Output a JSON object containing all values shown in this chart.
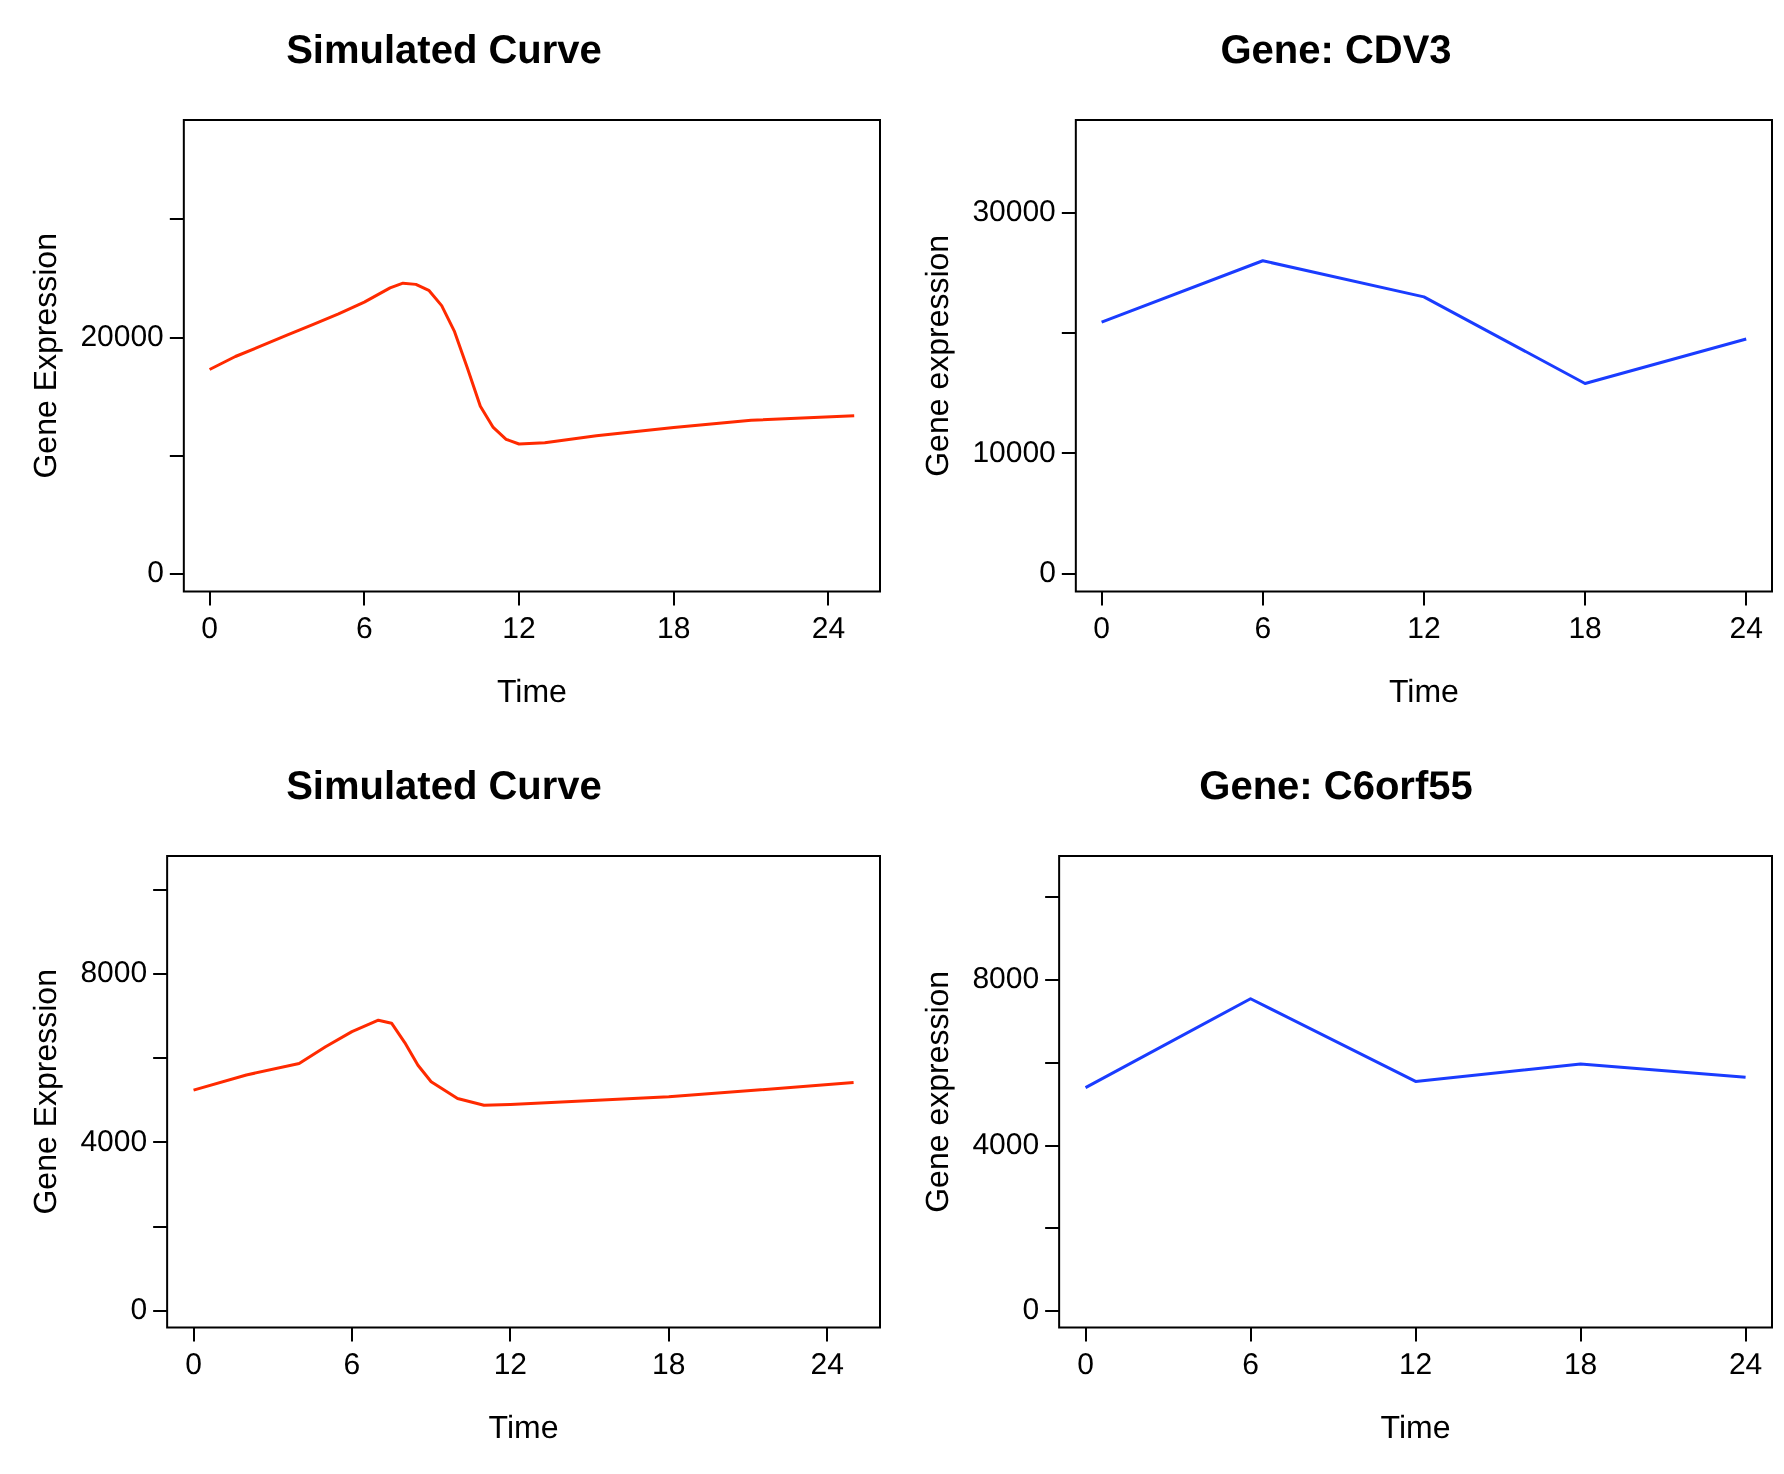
{
  "chart_data": [
    {
      "type": "line",
      "title": "Simulated Curve",
      "xlabel": "Time",
      "ylabel": "Gene Expression",
      "xlim": [
        -1,
        26
      ],
      "xticks": [
        0,
        6,
        12,
        18,
        24
      ],
      "ylim": [
        -1480,
        38400
      ],
      "yticks": [
        0,
        {
          "value": 10000,
          "label": null
        },
        20000,
        {
          "value": 30000,
          "label": null
        }
      ],
      "grid": false,
      "legend": false,
      "marker": "none",
      "x": [
        0,
        1,
        2,
        3,
        4,
        5,
        6,
        7,
        7.5,
        8,
        8.5,
        9,
        9.5,
        10,
        10.5,
        11,
        11.5,
        12,
        13,
        15,
        18,
        21,
        25
      ],
      "series": [
        {
          "color": "#ff2a00",
          "values": [
            17300,
            18400,
            19300,
            20200,
            21100,
            22000,
            23000,
            24200,
            24600,
            24500,
            24000,
            22700,
            20500,
            17400,
            14200,
            12400,
            11400,
            11000,
            11100,
            11700,
            12400,
            13000,
            13400
          ]
        }
      ]
    },
    {
      "type": "line",
      "title": "Gene: CDV3",
      "xlabel": "Time",
      "ylabel": "Gene expression",
      "xlim": [
        -0.96,
        24.96
      ],
      "xticks": [
        0,
        6,
        12,
        18,
        24
      ],
      "ylim": [
        -1500,
        37700
      ],
      "yticks": [
        0,
        10000,
        {
          "value": 20000,
          "label": null
        },
        30000
      ],
      "grid": false,
      "legend": false,
      "marker": "none",
      "x": [
        0,
        6,
        12,
        18,
        24
      ],
      "series": [
        {
          "color": "#1a3cff",
          "values": [
            20900,
            26000,
            23000,
            15800,
            19500
          ]
        }
      ]
    },
    {
      "type": "line",
      "title": "Simulated Curve",
      "xlabel": "Time",
      "ylabel": "Gene Expression",
      "xlim": [
        -1,
        26
      ],
      "xticks": [
        0,
        6,
        12,
        18,
        24
      ],
      "ylim": [
        -400,
        10800
      ],
      "yticks": [
        0,
        {
          "value": 2000,
          "label": null
        },
        4000,
        {
          "value": 6000,
          "label": null
        },
        8000,
        {
          "value": 10000,
          "label": null
        }
      ],
      "grid": false,
      "legend": false,
      "marker": "none",
      "x": [
        0,
        2,
        4,
        5,
        6,
        7,
        7.5,
        8,
        8.5,
        9,
        10,
        11,
        12,
        18,
        25
      ],
      "series": [
        {
          "color": "#ff2a00",
          "values": [
            5240,
            5600,
            5870,
            6270,
            6630,
            6900,
            6830,
            6370,
            5830,
            5440,
            5040,
            4880,
            4900,
            5080,
            5420
          ]
        }
      ]
    },
    {
      "type": "line",
      "title": "Gene: C6orf55",
      "xlabel": "Time",
      "ylabel": "Gene expression",
      "xlim": [
        -0.96,
        24.96
      ],
      "xticks": [
        0,
        6,
        12,
        18,
        24
      ],
      "ylim": [
        -400,
        11000
      ],
      "yticks": [
        0,
        {
          "value": 2000,
          "label": null
        },
        4000,
        {
          "value": 6000,
          "label": null
        },
        8000,
        {
          "value": 10000,
          "label": null
        }
      ],
      "grid": false,
      "legend": false,
      "marker": "none",
      "x": [
        0,
        6,
        12,
        18,
        24
      ],
      "series": [
        {
          "color": "#1a3cff",
          "values": [
            5400,
            7550,
            5550,
            5970,
            5650
          ]
        }
      ]
    }
  ]
}
